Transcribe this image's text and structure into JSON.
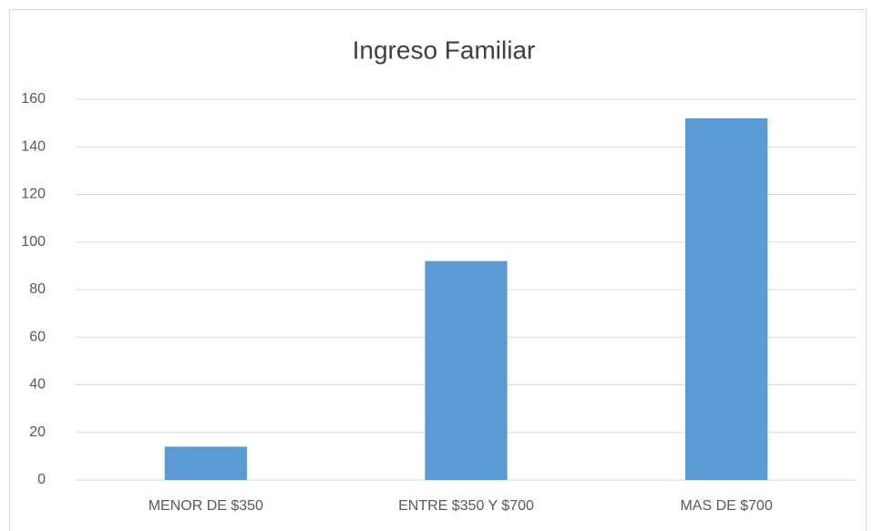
{
  "chart_data": {
    "type": "bar",
    "title": "Ingreso Familiar",
    "categories": [
      "MENOR DE $350",
      "ENTRE $350 Y $700",
      "MAS DE $700"
    ],
    "values": [
      14,
      92,
      152
    ],
    "color": "#5b9bd5",
    "ylim": [
      0,
      160
    ],
    "yticks": [
      0,
      20,
      40,
      60,
      80,
      100,
      120,
      140,
      160
    ],
    "grid": true
  }
}
